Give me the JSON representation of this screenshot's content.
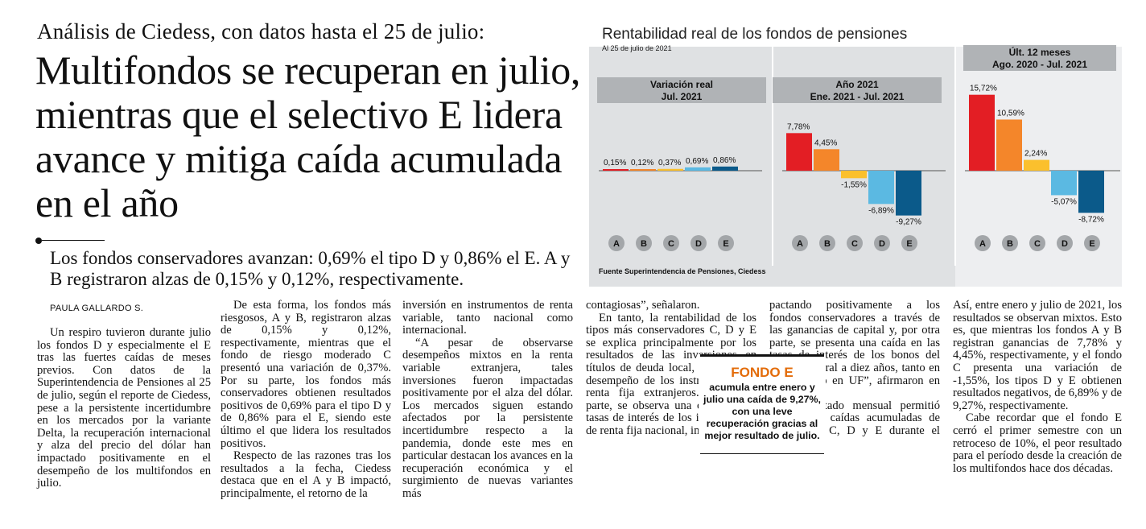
{
  "article": {
    "kicker": "Análisis de Ciedess, con datos hasta el 25 de julio:",
    "headline": "Multifondos se recuperan en julio, mientras que el selectivo E lidera avance y mitiga caída acumulada en el año",
    "deck": "Los fondos conservadores avanzan: 0,69% el tipo D y 0,86% el E. A y B registraron alzas de 0,15% y 0,12%, respectivamente.",
    "byline": "PAULA GALLARDO S.",
    "columns": [
      [
        "Un respiro tuvieron durante julio los fondos D y especialmente el E tras las fuertes caídas de meses previos. Con datos de la Superintendencia de Pensiones al 25 de julio, según el reporte de Ciedess, pese a la persistente incertidumbre en los mercados por la variante Delta, la recuperación internacional y alza del precio del dólar han impactado positivamente en el desempeño de los multifondos en julio."
      ],
      [
        "De esta forma, los fondos más riesgosos, A y B, registraron alzas de 0,15% y 0,12%, respectivamente, mientras que el fondo de riesgo moderado C presentó una variación de 0,37%. Por su parte, los fondos más conservadores obtienen resultados positivos de 0,69% para el tipo D y de 0,86% para el E, siendo este último el que lidera los resultados positivos.",
        "Respecto de las razones tras los resultados a la fecha, Ciedess destaca que en el A y B impactó, principalmente, el retorno de la"
      ],
      [
        "inversión en instrumentos de renta variable, tanto nacional como internacional.",
        "“A pesar de observarse desempeños mixtos en la renta variable extranjera, tales inversiones fueron impactadas positivamente por el alza del dólar. Los mercados siguen estando afectados por la persistente incertidumbre respecto a la pandemia, donde este mes en particular destacan los avances en la recuperación económica y el surgimiento de nuevas variantes más"
      ],
      [
        "contagiosas”, señalaron.",
        "En tanto, la rentabilidad de los tipos más conservadores C, D y E se explica principalmente por los resultados de las inversiones en títulos de deuda local, así como el desempeño de los instrumentos de renta fija extranjeros. “Por una parte, se observa una caída en las tasas de interés de los instrumentos de renta fija nacional, im-"
      ],
      [
        "pactando positivamente a los fondos conservadores a través de las ganancias de capital y, por otra parte, se presenta una caída en las tasas de interés de los bonos del Banco Central a diez años, tanto en pesos como en UF”, afirmaron en Ciedess.",
        "El resultado mensual permitió mitigar las caídas acumuladas de los fondos C, D y E durante el semestre."
      ],
      [
        "Así, entre enero y julio de 2021, los resultados se observan mixtos. Esto es, que mientras los fondos A y B registran ganancias de 7,78% y 4,45%, respectivamente, y el fondo C presenta una variación de -1,55%, los tipos D y E obtienen resultados negativos, de 6,89% y de 9,27%, respectivamente.",
        "Cabe recordar que el fondo E cerró el primer semestre con un retroceso de 10%, el peor resultado para el período desde la creación de los multifondos hace dos décadas."
      ]
    ]
  },
  "box": {
    "title": "FONDO E",
    "text": "acumula entre enero y julio una caída de 9,27%, con una leve recuperación gracias al mejor resultado de julio."
  },
  "chart_data": {
    "type": "bar",
    "title": "Rentabilidad real de los fondos de pensiones",
    "subtitle": "Al 25 de julio de 2021",
    "source": "Fuente Superintendencia de Pensiones, Ciedess",
    "categories": [
      "A",
      "B",
      "C",
      "D",
      "E"
    ],
    "series_colors": [
      "#e31e24",
      "#f4862a",
      "#fbc02d",
      "#5bb9e2",
      "#0b5a8a"
    ],
    "panels": [
      {
        "header": [
          "Variación real",
          "Jul. 2021"
        ],
        "values": [
          0.15,
          0.12,
          0.37,
          0.69,
          0.86
        ],
        "labels": [
          "0,15%",
          "0,12%",
          "0,37%",
          "0,69%",
          "0,86%"
        ]
      },
      {
        "header": [
          "Año 2021",
          "Ene. 2021 - Jul. 2021"
        ],
        "values": [
          7.78,
          4.45,
          -1.55,
          -6.89,
          -9.27
        ],
        "labels": [
          "7,78%",
          "4,45%",
          "-1,55%",
          "-6,89%",
          "-9,27%"
        ]
      },
      {
        "header": [
          "Últ. 12 meses",
          "Ago. 2020 - Jul. 2021"
        ],
        "values": [
          15.72,
          10.59,
          2.24,
          -5.07,
          -8.72
        ],
        "labels": [
          "15,72%",
          "10,59%",
          "2,24%",
          "-5,07%",
          "-8,72%"
        ]
      }
    ]
  }
}
